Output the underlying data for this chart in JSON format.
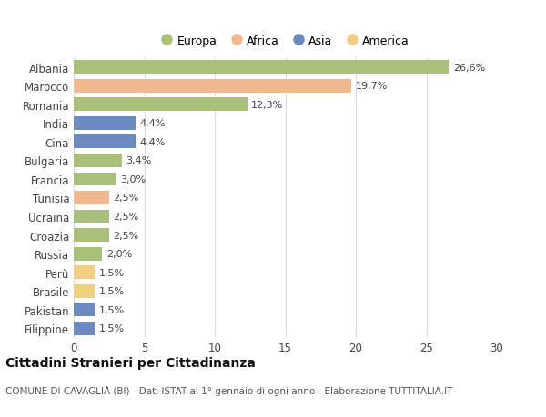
{
  "countries": [
    "Albania",
    "Marocco",
    "Romania",
    "India",
    "Cina",
    "Bulgaria",
    "Francia",
    "Tunisia",
    "Ucraina",
    "Croazia",
    "Russia",
    "Perù",
    "Brasile",
    "Pakistan",
    "Filippine"
  ],
  "values": [
    26.6,
    19.7,
    12.3,
    4.4,
    4.4,
    3.4,
    3.0,
    2.5,
    2.5,
    2.5,
    2.0,
    1.5,
    1.5,
    1.5,
    1.5
  ],
  "labels": [
    "26,6%",
    "19,7%",
    "12,3%",
    "4,4%",
    "4,4%",
    "3,4%",
    "3,0%",
    "2,5%",
    "2,5%",
    "2,5%",
    "2,0%",
    "1,5%",
    "1,5%",
    "1,5%",
    "1,5%"
  ],
  "continents": [
    "Europa",
    "Africa",
    "Europa",
    "Asia",
    "Asia",
    "Europa",
    "Europa",
    "Africa",
    "Europa",
    "Europa",
    "Europa",
    "America",
    "America",
    "Asia",
    "Asia"
  ],
  "colors": {
    "Europa": "#a8c07a",
    "Africa": "#f0b990",
    "Asia": "#6b8abf",
    "America": "#f0d080"
  },
  "legend_order": [
    "Europa",
    "Africa",
    "Asia",
    "America"
  ],
  "xlim": [
    0,
    30
  ],
  "xticks": [
    0,
    5,
    10,
    15,
    20,
    25,
    30
  ],
  "title": "Cittadini Stranieri per Cittadinanza",
  "subtitle": "COMUNE DI CAVAGLIÀ (BI) - Dati ISTAT al 1° gennaio di ogni anno - Elaborazione TUTTITALIA.IT",
  "bg_color": "#ffffff",
  "grid_color": "#dddddd",
  "bar_height": 0.72,
  "label_fontsize": 8,
  "title_fontsize": 10,
  "subtitle_fontsize": 7.5,
  "ytick_fontsize": 8.5,
  "xtick_fontsize": 8.5,
  "legend_fontsize": 9
}
